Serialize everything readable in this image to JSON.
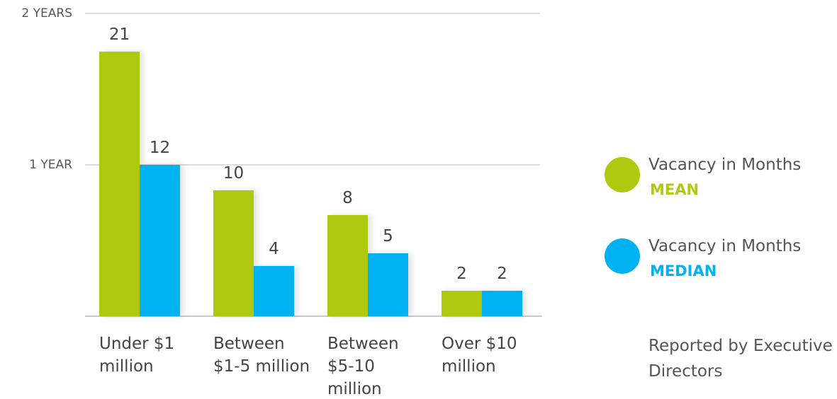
{
  "chart_data": {
    "type": "bar",
    "categories": [
      "Under $1 million",
      "Between $1-5 million",
      "Between $5-10 million",
      "Over $10 million"
    ],
    "series": [
      {
        "name": "MEAN",
        "color": "#b0c80e",
        "values": [
          21,
          10,
          8,
          2
        ]
      },
      {
        "name": "MEDIAN",
        "color": "#00b2f2",
        "values": [
          12,
          4,
          5,
          2
        ]
      }
    ],
    "legend_title": "Vacancy in Months",
    "ylim": [
      0,
      24
    ],
    "yticks": [
      {
        "value": 12,
        "label": "1 YEAR"
      },
      {
        "value": 24,
        "label": "2 YEARS"
      }
    ],
    "grid": true,
    "legend": "right",
    "note": "Reported by Executive Directors"
  }
}
